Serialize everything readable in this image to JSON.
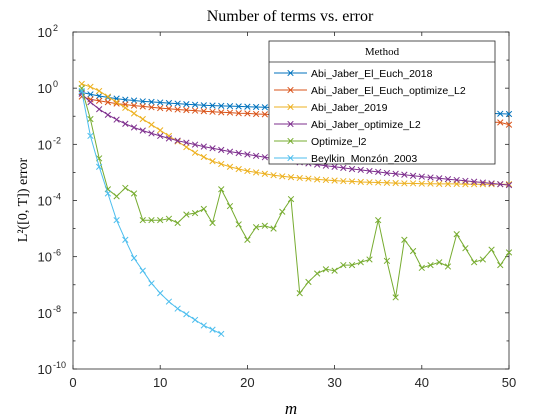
{
  "chart_data": {
    "type": "line",
    "title": "Number of terms vs. error",
    "xlabel": "m",
    "ylabel": "L²([0, T]) error",
    "xlim": [
      0,
      50
    ],
    "ylim_log10": [
      -10,
      2
    ],
    "yscale": "log",
    "grid": false,
    "legend": {
      "title": "Method",
      "placement": "top-right"
    },
    "x_ticks": [
      "0",
      "10",
      "20",
      "30",
      "40",
      "50"
    ],
    "y_ticks": [
      {
        "base": "10",
        "exp": "-10"
      },
      {
        "base": "10",
        "exp": "-8"
      },
      {
        "base": "10",
        "exp": "-6"
      },
      {
        "base": "10",
        "exp": "-4"
      },
      {
        "base": "10",
        "exp": "-2"
      },
      {
        "base": "10",
        "exp": "0"
      },
      {
        "base": "10",
        "exp": "2"
      }
    ],
    "series": [
      {
        "name": "Abi_Jaber_El_Euch_2018",
        "color": "#0072BD",
        "x": [
          1,
          2,
          3,
          4,
          5,
          6,
          7,
          8,
          9,
          10,
          11,
          12,
          13,
          14,
          15,
          16,
          17,
          18,
          19,
          20,
          21,
          22,
          23,
          24,
          25,
          26,
          27,
          28,
          29,
          30,
          31,
          32,
          33,
          34,
          35,
          36,
          37,
          38,
          39,
          40,
          41,
          42,
          43,
          44,
          45,
          46,
          47,
          48,
          49,
          50
        ],
        "log10_y": [
          -0.15,
          -0.22,
          -0.28,
          -0.33,
          -0.37,
          -0.41,
          -0.44,
          -0.47,
          -0.49,
          -0.51,
          -0.53,
          -0.55,
          -0.57,
          -0.59,
          -0.61,
          -0.62,
          -0.63,
          -0.64,
          -0.65,
          -0.66,
          -0.67,
          -0.68,
          -0.69,
          -0.7,
          -0.71,
          -0.72,
          -0.73,
          -0.73,
          -0.74,
          -0.75,
          -0.76,
          -0.77,
          -0.78,
          -0.78,
          -0.79,
          -0.8,
          -0.81,
          -0.82,
          -0.82,
          -0.83,
          -0.84,
          -0.85,
          -0.86,
          -0.87,
          -0.88,
          -0.89,
          -0.89,
          -0.9,
          -0.91,
          -0.92
        ]
      },
      {
        "name": "Abi_Jaber_El_Euch_optimize_L2",
        "color": "#D95319",
        "x": [
          1,
          2,
          3,
          4,
          5,
          6,
          7,
          8,
          9,
          10,
          11,
          12,
          13,
          14,
          15,
          16,
          17,
          18,
          19,
          20,
          21,
          22,
          23,
          24,
          25,
          26,
          27,
          28,
          29,
          30,
          31,
          32,
          33,
          34,
          35,
          36,
          37,
          38,
          39,
          40,
          41,
          42,
          43,
          44,
          45,
          46,
          47,
          48,
          49,
          50
        ],
        "log10_y": [
          -0.3,
          -0.4,
          -0.45,
          -0.5,
          -0.55,
          -0.58,
          -0.62,
          -0.65,
          -0.68,
          -0.71,
          -0.73,
          -0.76,
          -0.78,
          -0.8,
          -0.82,
          -0.84,
          -0.86,
          -0.87,
          -0.89,
          -0.9,
          -0.92,
          -0.93,
          -0.95,
          -0.96,
          -0.98,
          -0.99,
          -1.0,
          -1.01,
          -1.03,
          -1.04,
          -1.05,
          -1.06,
          -1.07,
          -1.08,
          -1.09,
          -1.1,
          -1.11,
          -1.12,
          -1.13,
          -1.14,
          -1.15,
          -1.16,
          -1.17,
          -1.18,
          -1.19,
          -1.2,
          -1.2,
          -1.21,
          -1.22,
          -1.3
        ]
      },
      {
        "name": "Abi_Jaber_2019",
        "color": "#EDB120",
        "x": [
          1,
          2,
          3,
          4,
          5,
          6,
          7,
          8,
          9,
          10,
          11,
          12,
          13,
          14,
          15,
          16,
          17,
          18,
          19,
          20,
          21,
          22,
          23,
          24,
          25,
          26,
          27,
          28,
          29,
          30,
          31,
          32,
          33,
          34,
          35,
          36,
          37,
          38,
          39,
          40,
          41,
          42,
          43,
          44,
          45,
          46,
          47,
          48,
          49,
          50
        ],
        "log10_y": [
          0.15,
          0.05,
          -0.1,
          -0.3,
          -0.5,
          -0.7,
          -0.9,
          -1.1,
          -1.3,
          -1.5,
          -1.7,
          -1.9,
          -2.1,
          -2.3,
          -2.45,
          -2.6,
          -2.7,
          -2.8,
          -2.88,
          -2.95,
          -3.0,
          -3.05,
          -3.1,
          -3.14,
          -3.17,
          -3.2,
          -3.22,
          -3.25,
          -3.27,
          -3.29,
          -3.31,
          -3.32,
          -3.34,
          -3.35,
          -3.36,
          -3.37,
          -3.38,
          -3.39,
          -3.39,
          -3.4,
          -3.4,
          -3.41,
          -3.41,
          -3.41,
          -3.42,
          -3.42,
          -3.42,
          -3.42,
          -3.42,
          -3.42
        ]
      },
      {
        "name": "Abi_Jaber_optimize_L2",
        "color": "#7E2F8E",
        "x": [
          1,
          2,
          3,
          4,
          5,
          6,
          7,
          8,
          9,
          10,
          11,
          12,
          13,
          14,
          15,
          16,
          17,
          18,
          19,
          20,
          21,
          22,
          23,
          24,
          25,
          26,
          27,
          28,
          29,
          30,
          31,
          32,
          33,
          34,
          35,
          36,
          37,
          38,
          39,
          40,
          41,
          42,
          43,
          44,
          45,
          46,
          47,
          48,
          49,
          50
        ],
        "log10_y": [
          -0.2,
          -0.5,
          -0.75,
          -0.95,
          -1.12,
          -1.27,
          -1.4,
          -1.51,
          -1.61,
          -1.7,
          -1.79,
          -1.87,
          -1.94,
          -2.01,
          -2.08,
          -2.14,
          -2.2,
          -2.26,
          -2.31,
          -2.36,
          -2.41,
          -2.46,
          -2.51,
          -2.55,
          -2.6,
          -2.64,
          -2.68,
          -2.72,
          -2.76,
          -2.8,
          -2.84,
          -2.88,
          -2.91,
          -2.95,
          -2.98,
          -3.02,
          -3.05,
          -3.08,
          -3.12,
          -3.15,
          -3.18,
          -3.21,
          -3.24,
          -3.27,
          -3.3,
          -3.33,
          -3.36,
          -3.39,
          -3.42,
          -3.45
        ]
      },
      {
        "name": "Optimize_l2",
        "color": "#77AC30",
        "x": [
          1,
          2,
          3,
          4,
          5,
          6,
          7,
          8,
          9,
          10,
          11,
          12,
          13,
          14,
          15,
          16,
          17,
          18,
          19,
          20,
          21,
          22,
          23,
          24,
          25,
          26,
          27,
          28,
          29,
          30,
          31,
          32,
          33,
          34,
          35,
          36,
          37,
          38,
          39,
          40,
          41,
          42,
          43,
          44,
          45,
          46,
          47,
          48,
          49,
          50
        ],
        "log10_y": [
          0.0,
          -1.1,
          -2.5,
          -3.6,
          -3.85,
          -3.55,
          -3.75,
          -4.7,
          -4.7,
          -4.7,
          -4.65,
          -4.8,
          -4.5,
          -4.45,
          -4.3,
          -4.8,
          -3.6,
          -4.2,
          -4.85,
          -5.4,
          -4.95,
          -4.9,
          -5.0,
          -4.4,
          -3.95,
          -7.3,
          -6.9,
          -6.6,
          -6.45,
          -6.5,
          -6.3,
          -6.3,
          -6.2,
          -6.1,
          -4.7,
          -6.15,
          -7.45,
          -5.4,
          -5.8,
          -6.4,
          -6.3,
          -6.2,
          -6.35,
          -5.2,
          -5.7,
          -6.2,
          -6.1,
          -5.75,
          -6.3,
          -5.85
        ]
      },
      {
        "name": "Beylkin_Monzón_2003",
        "color": "#4DBEEE",
        "x": [
          1,
          2,
          3,
          4,
          5,
          6,
          7,
          8,
          9,
          10,
          11,
          12,
          13,
          14,
          15,
          16,
          17
        ],
        "log10_y": [
          -0.1,
          -1.7,
          -2.8,
          -3.75,
          -4.7,
          -5.4,
          -6.05,
          -6.5,
          -6.95,
          -7.3,
          -7.6,
          -7.85,
          -8.05,
          -8.25,
          -8.45,
          -8.6,
          -8.75
        ]
      }
    ]
  }
}
